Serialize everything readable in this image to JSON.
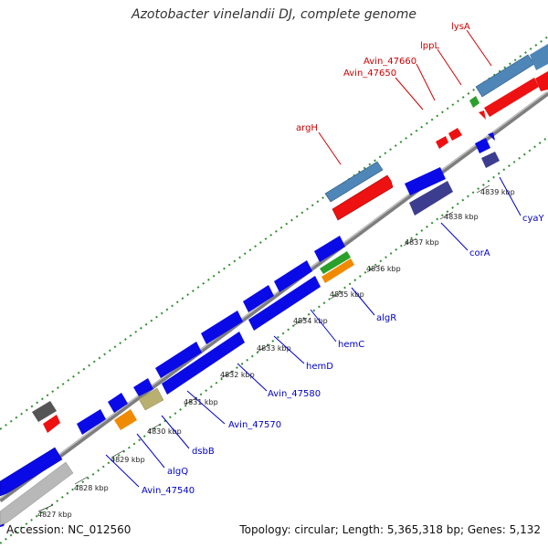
{
  "title": "Azotobacter vinelandii DJ, complete genome",
  "footer": {
    "accession": "Accession: NC_012560",
    "summary": "Topology: circular; Length: 5,365,318 bp; Genes: 5,132"
  },
  "colors": {
    "backbone": "#8a8a8a",
    "dotted_track": "#2f8f2f",
    "label_forward": "#cc0000",
    "label_reverse": "#0000cc",
    "cds_blue": "#0a0ae6",
    "cds_red": "#ee1111",
    "cds_steelblue": "#4f86b8",
    "cds_navy": "#3d3d8f",
    "rna_green": "#2aa02a",
    "pseudo_gray": "#b8b8b8",
    "misc_orange": "#f08a00",
    "misc_khaki": "#b9b070",
    "misc_dark": "#555555"
  },
  "ticks": [
    "4827 kbp",
    "4828 kbp",
    "4829 kbp",
    "4830 kbp",
    "4831 kbp",
    "4832 kbp",
    "4833 kbp",
    "4834 kbp",
    "4835 kbp",
    "4836 kbp",
    "4837 kbp",
    "4838 kbp",
    "4839 kbp"
  ],
  "forward_labels": [
    "argH",
    "Avin_47650",
    "Avin_47660",
    "lppL",
    "lysA"
  ],
  "reverse_labels": [
    "Avin_47540",
    "algQ",
    "dsbB",
    "Avin_47570",
    "Avin_47580",
    "hemD",
    "hemC",
    "algR",
    "corA",
    "cyaY"
  ]
}
